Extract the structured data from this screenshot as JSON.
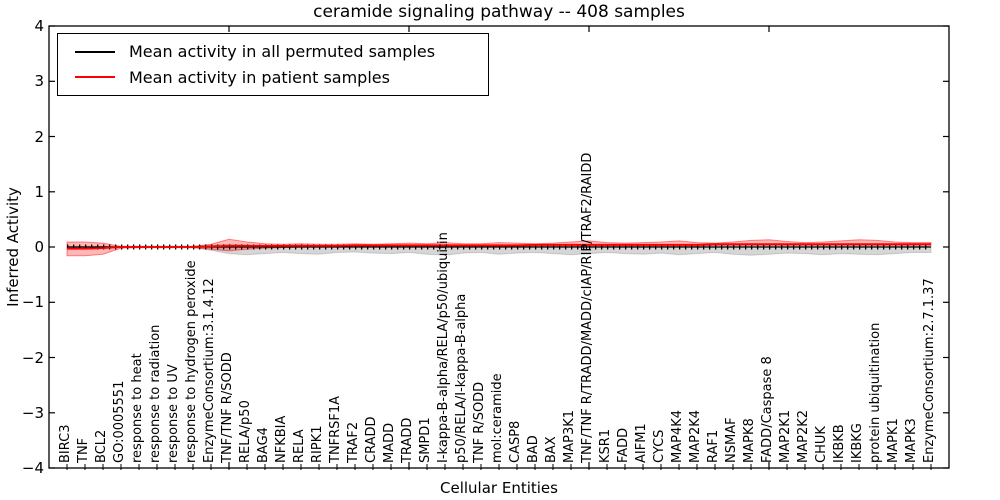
{
  "title": "ceramide signaling pathway -- 408 samples",
  "axes": {
    "ylabel": "Inferred Activity",
    "xlabel": "Cellular Entities",
    "ylim": [
      -4,
      4
    ],
    "xlim": [
      0,
      50
    ],
    "y_ticks": [
      {
        "label": "4",
        "value": 4
      },
      {
        "label": "3",
        "value": 3
      },
      {
        "label": "2",
        "value": 2
      },
      {
        "label": "1",
        "value": 1
      },
      {
        "label": "0",
        "value": 0
      },
      {
        "label": "−1",
        "value": -1
      },
      {
        "label": "−2",
        "value": -2
      },
      {
        "label": "−3",
        "value": -3
      },
      {
        "label": "−4",
        "value": -4
      }
    ],
    "x_major_tick_positions": [
      10,
      20,
      30,
      40
    ]
  },
  "legend": {
    "items": [
      {
        "label": "Mean activity in all permuted samples",
        "color": "#000000"
      },
      {
        "label": "Mean activity in patient samples",
        "color": "#ff0000"
      }
    ]
  },
  "chart_data": {
    "type": "line",
    "title": "ceramide signaling pathway -- 408 samples",
    "xlabel": "Cellular Entities",
    "ylabel": "Inferred Activity",
    "ylim": [
      -4,
      4
    ],
    "grid": false,
    "legend_position": "upper left",
    "categories": [
      "BIRC3",
      "TNF",
      "BCL2",
      "GO:0005551",
      "response to heat",
      "response to radiation",
      "response to UV",
      "response to hydrogen peroxide",
      "EnzymeConsortium:3.1.4.12",
      "TNF/TNF R/SODD",
      "RELA/p50",
      "BAG4",
      "NFKBIA",
      "RELA",
      "RIPK1",
      "TNFRSF1A",
      "TRAF2",
      "CRADD",
      "MADD",
      "TRADD",
      "SMPD1",
      "I-kappa-B-alpha/RELA/p50/ubiquitin",
      "p50/RELA/I-kappa-B-alpha",
      "TNF R/SODD",
      "mol:ceramide",
      "CASP8",
      "BAD",
      "BAX",
      "MAP3K1",
      "TNF/TNF R/TRADD/MADD/cIAP/RIP/TRAF2/RAIDD",
      "KSR1",
      "FADD",
      "AIFM1",
      "CYCS",
      "MAP4K4",
      "MAP2K4",
      "RAF1",
      "NSMAF",
      "MAPK8",
      "FADD/Caspase 8",
      "MAP2K1",
      "MAP2K2",
      "CHUK",
      "IKBKB",
      "IKBKG",
      "protein ubiquitination",
      "MAPK1",
      "MAPK3",
      "EnzymeConsortium:2.7.1.37"
    ],
    "series": [
      {
        "name": "Mean activity in all permuted samples",
        "color": "#000000",
        "band_color": "rgba(0,0,0,0.16)",
        "values": [
          0,
          0,
          0,
          0,
          0,
          0,
          0,
          0,
          0,
          0,
          0,
          0,
          0,
          0,
          0,
          0,
          0,
          0,
          0,
          0,
          0,
          0,
          0,
          0,
          0,
          0,
          0,
          0,
          0,
          0,
          0,
          0,
          0,
          0,
          0,
          0,
          0,
          0,
          0,
          0,
          0,
          0,
          0,
          0,
          0,
          0,
          0,
          0,
          0
        ],
        "band_upper": [
          0.01,
          0.01,
          0.01,
          0.01,
          0.01,
          0.01,
          0.01,
          0.01,
          0.03,
          0.05,
          0.04,
          0.03,
          0.03,
          0.04,
          0.03,
          0.03,
          0.03,
          0.03,
          0.04,
          0.03,
          0.03,
          0.04,
          0.03,
          0.03,
          0.04,
          0.03,
          0.03,
          0.03,
          0.04,
          0.03,
          0.03,
          0.03,
          0.03,
          0.03,
          0.04,
          0.03,
          0.03,
          0.03,
          0.04,
          0.03,
          0.03,
          0.03,
          0.03,
          0.03,
          0.03,
          0.03,
          0.03,
          0.02,
          0.02
        ],
        "band_lower": [
          -0.01,
          -0.01,
          -0.01,
          -0.01,
          -0.01,
          -0.01,
          -0.01,
          -0.01,
          -0.06,
          -0.12,
          -0.14,
          -0.12,
          -0.1,
          -0.12,
          -0.13,
          -0.1,
          -0.09,
          -0.11,
          -0.12,
          -0.1,
          -0.13,
          -0.15,
          -0.11,
          -0.1,
          -0.13,
          -0.11,
          -0.1,
          -0.12,
          -0.14,
          -0.12,
          -0.1,
          -0.12,
          -0.13,
          -0.11,
          -0.14,
          -0.12,
          -0.1,
          -0.13,
          -0.15,
          -0.13,
          -0.11,
          -0.12,
          -0.14,
          -0.12,
          -0.13,
          -0.14,
          -0.12,
          -0.1,
          -0.1
        ]
      },
      {
        "name": "Mean activity in patient samples",
        "color": "#ff0000",
        "band_color": "rgba(255,0,0,0.28)",
        "values": [
          -0.03,
          -0.03,
          -0.02,
          0,
          0,
          0,
          0,
          0,
          0.01,
          0.02,
          0.02,
          0.02,
          0.02,
          0.02,
          0.02,
          0.02,
          0.03,
          0.03,
          0.03,
          0.03,
          0.03,
          0.03,
          0.03,
          0.03,
          0.03,
          0.03,
          0.04,
          0.04,
          0.04,
          0.04,
          0.04,
          0.04,
          0.04,
          0.04,
          0.04,
          0.04,
          0.05,
          0.05,
          0.05,
          0.05,
          0.05,
          0.05,
          0.05,
          0.05,
          0.05,
          0.05,
          0.05,
          0.05,
          0.05
        ],
        "band_upper": [
          0.09,
          0.09,
          0.07,
          0.01,
          0.01,
          0.01,
          0.01,
          0.01,
          0.05,
          0.14,
          0.09,
          0.06,
          0.05,
          0.06,
          0.05,
          0.05,
          0.06,
          0.05,
          0.06,
          0.07,
          0.06,
          0.08,
          0.06,
          0.06,
          0.08,
          0.07,
          0.06,
          0.07,
          0.09,
          0.11,
          0.08,
          0.07,
          0.08,
          0.09,
          0.11,
          0.08,
          0.07,
          0.09,
          0.12,
          0.13,
          0.1,
          0.08,
          0.09,
          0.11,
          0.13,
          0.12,
          0.09,
          0.08,
          0.08
        ],
        "band_lower": [
          -0.16,
          -0.16,
          -0.13,
          -0.02,
          -0.01,
          -0.01,
          -0.01,
          -0.01,
          -0.04,
          -0.07,
          -0.04,
          -0.02,
          -0.01,
          0,
          0,
          0,
          0.01,
          0.01,
          0.01,
          0.01,
          0.01,
          0.01,
          0.01,
          0.01,
          0.01,
          0.01,
          0.02,
          0.02,
          0.02,
          0.02,
          0.02,
          0.02,
          0.02,
          0.02,
          0.02,
          0.02,
          0.03,
          0.03,
          0.03,
          0.03,
          0.03,
          0.03,
          0.03,
          0.03,
          0.03,
          0.03,
          0.03,
          0.03,
          0.03
        ]
      }
    ]
  }
}
